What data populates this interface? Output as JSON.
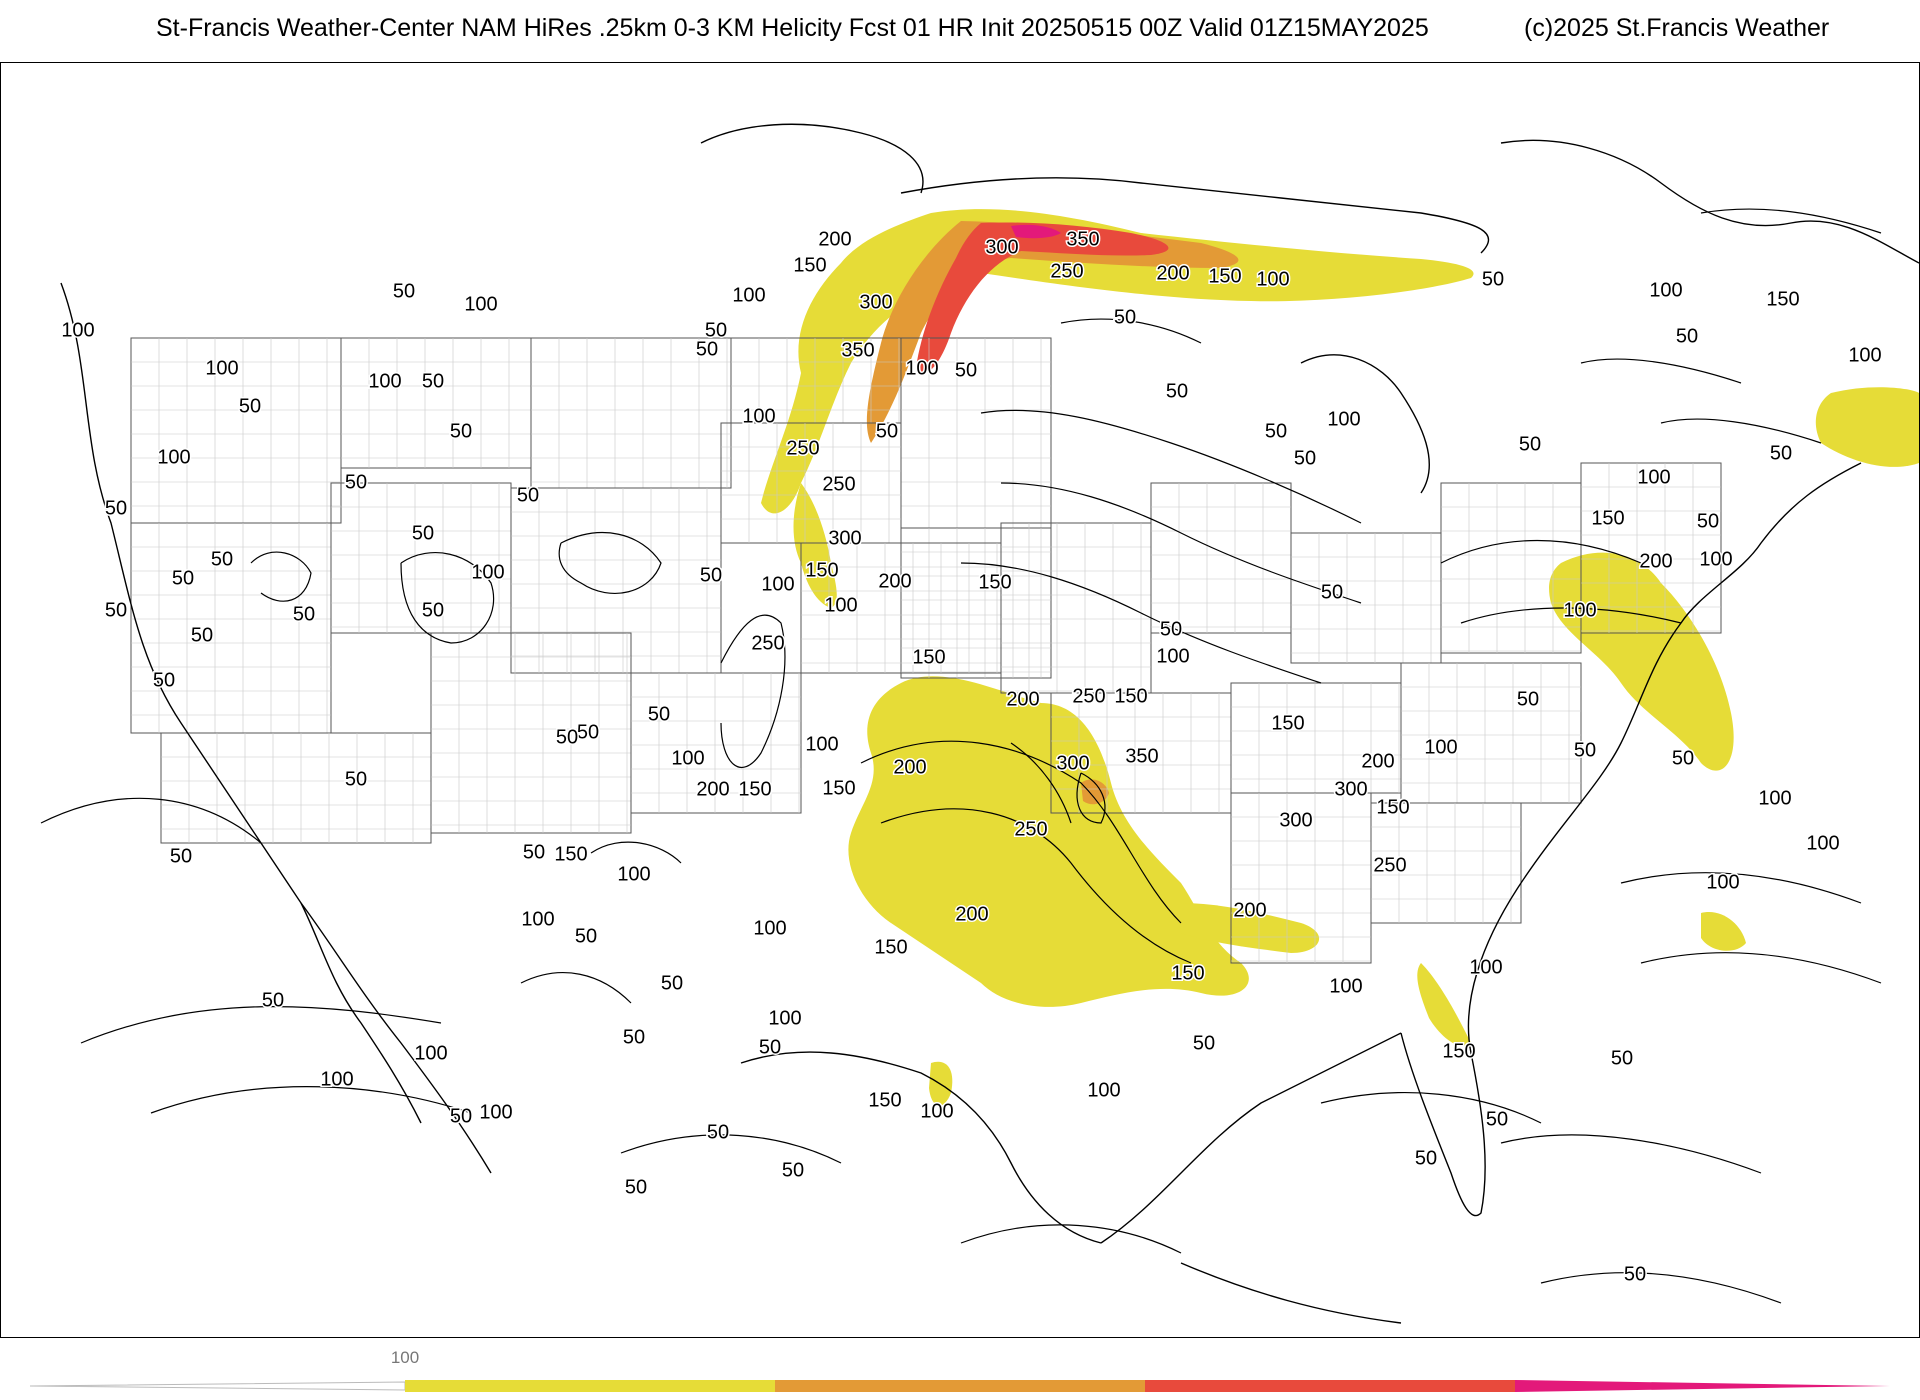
{
  "title": {
    "main": "St-Francis Weather-Center NAM HiRes .25km 0-3 KM Helicity Fcst 01 HR Init 20250515 00Z  Valid 01Z15MAY2025",
    "copyright": "(c)2025 St.Francis Weather"
  },
  "colors": {
    "fill_yellow": "#e6dc37",
    "fill_orange": "#e39a36",
    "fill_red": "#e84a3c",
    "fill_magenta": "#e3197a",
    "line": "#000000",
    "grid": "#9a9a9a"
  },
  "legend": {
    "tick_label": "100",
    "bins": [
      "#e6dc37",
      "#e39a36",
      "#e84a3c",
      "#e3197a"
    ]
  },
  "contour_labels": [
    {
      "t": "50",
      "lx": 0.21,
      "ly": 0.18
    },
    {
      "t": "100",
      "lx": 0.25,
      "ly": 0.19
    },
    {
      "t": "100",
      "lx": 0.04,
      "ly": 0.21
    },
    {
      "t": "100",
      "lx": 0.115,
      "ly": 0.24
    },
    {
      "t": "100",
      "lx": 0.2,
      "ly": 0.25
    },
    {
      "t": "50",
      "lx": 0.225,
      "ly": 0.25
    },
    {
      "t": "50",
      "lx": 0.13,
      "ly": 0.27
    },
    {
      "t": "50",
      "lx": 0.24,
      "ly": 0.29
    },
    {
      "t": "100",
      "lx": 0.09,
      "ly": 0.31
    },
    {
      "t": "50",
      "lx": 0.06,
      "ly": 0.35
    },
    {
      "t": "50",
      "lx": 0.185,
      "ly": 0.33
    },
    {
      "t": "50",
      "lx": 0.275,
      "ly": 0.34
    },
    {
      "t": "50",
      "lx": 0.22,
      "ly": 0.37
    },
    {
      "t": "50",
      "lx": 0.115,
      "ly": 0.39
    },
    {
      "t": "50",
      "lx": 0.095,
      "ly": 0.405
    },
    {
      "t": "100",
      "lx": 0.254,
      "ly": 0.4
    },
    {
      "t": "50",
      "lx": 0.06,
      "ly": 0.43
    },
    {
      "t": "50",
      "lx": 0.158,
      "ly": 0.433
    },
    {
      "t": "50",
      "lx": 0.225,
      "ly": 0.43
    },
    {
      "t": "50",
      "lx": 0.105,
      "ly": 0.45
    },
    {
      "t": "50",
      "lx": 0.085,
      "ly": 0.485
    },
    {
      "t": "50",
      "lx": 0.37,
      "ly": 0.403
    },
    {
      "t": "100",
      "lx": 0.405,
      "ly": 0.41
    },
    {
      "t": "100",
      "lx": 0.438,
      "ly": 0.426
    },
    {
      "t": "200",
      "lx": 0.466,
      "ly": 0.407
    },
    {
      "t": "150",
      "lx": 0.428,
      "ly": 0.399
    },
    {
      "t": "250",
      "lx": 0.4,
      "ly": 0.456
    },
    {
      "t": "50",
      "lx": 0.368,
      "ly": 0.225
    },
    {
      "t": "50",
      "lx": 0.373,
      "ly": 0.21
    },
    {
      "t": "100",
      "lx": 0.39,
      "ly": 0.183
    },
    {
      "t": "150",
      "lx": 0.422,
      "ly": 0.159
    },
    {
      "t": "200",
      "lx": 0.435,
      "ly": 0.139
    },
    {
      "t": "300",
      "lx": 0.456,
      "ly": 0.188
    },
    {
      "t": "350",
      "lx": 0.447,
      "ly": 0.226
    },
    {
      "t": "100",
      "lx": 0.395,
      "ly": 0.278
    },
    {
      "t": "250",
      "lx": 0.418,
      "ly": 0.303
    },
    {
      "t": "250",
      "lx": 0.437,
      "ly": 0.331
    },
    {
      "t": "300",
      "lx": 0.44,
      "ly": 0.374
    },
    {
      "t": "100",
      "lx": 0.48,
      "ly": 0.24
    },
    {
      "t": "50",
      "lx": 0.503,
      "ly": 0.242
    },
    {
      "t": "50",
      "lx": 0.462,
      "ly": 0.29
    },
    {
      "t": "300",
      "lx": 0.522,
      "ly": 0.145
    },
    {
      "t": "350",
      "lx": 0.564,
      "ly": 0.139
    },
    {
      "t": "250",
      "lx": 0.556,
      "ly": 0.164
    },
    {
      "t": "200",
      "lx": 0.611,
      "ly": 0.166
    },
    {
      "t": "150",
      "lx": 0.638,
      "ly": 0.168
    },
    {
      "t": "100",
      "lx": 0.663,
      "ly": 0.17
    },
    {
      "t": "50",
      "lx": 0.778,
      "ly": 0.17
    },
    {
      "t": "50",
      "lx": 0.586,
      "ly": 0.2
    },
    {
      "t": "50",
      "lx": 0.613,
      "ly": 0.258
    },
    {
      "t": "50",
      "lx": 0.665,
      "ly": 0.29
    },
    {
      "t": "50",
      "lx": 0.68,
      "ly": 0.311
    },
    {
      "t": "100",
      "lx": 0.7,
      "ly": 0.28
    },
    {
      "t": "100",
      "lx": 0.868,
      "ly": 0.179
    },
    {
      "t": "150",
      "lx": 0.929,
      "ly": 0.186
    },
    {
      "t": "50",
      "lx": 0.879,
      "ly": 0.215
    },
    {
      "t": "100",
      "lx": 0.972,
      "ly": 0.23
    },
    {
      "t": "50",
      "lx": 0.928,
      "ly": 0.307
    },
    {
      "t": "50",
      "lx": 0.797,
      "ly": 0.3
    },
    {
      "t": "100",
      "lx": 0.862,
      "ly": 0.326
    },
    {
      "t": "150",
      "lx": 0.838,
      "ly": 0.358
    },
    {
      "t": "50",
      "lx": 0.89,
      "ly": 0.36
    },
    {
      "t": "200",
      "lx": 0.863,
      "ly": 0.392
    },
    {
      "t": "100",
      "lx": 0.894,
      "ly": 0.39
    },
    {
      "t": "100",
      "lx": 0.823,
      "ly": 0.43
    },
    {
      "t": "50",
      "lx": 0.694,
      "ly": 0.416
    },
    {
      "t": "50",
      "lx": 0.61,
      "ly": 0.445
    },
    {
      "t": "100",
      "lx": 0.611,
      "ly": 0.466
    },
    {
      "t": "150",
      "lx": 0.518,
      "ly": 0.408
    },
    {
      "t": "150",
      "lx": 0.484,
      "ly": 0.467
    },
    {
      "t": "200",
      "lx": 0.533,
      "ly": 0.5
    },
    {
      "t": "250",
      "lx": 0.567,
      "ly": 0.498
    },
    {
      "t": "150",
      "lx": 0.589,
      "ly": 0.498
    },
    {
      "t": "150",
      "lx": 0.671,
      "ly": 0.519
    },
    {
      "t": "50",
      "lx": 0.796,
      "ly": 0.5
    },
    {
      "t": "350",
      "lx": 0.595,
      "ly": 0.545
    },
    {
      "t": "300",
      "lx": 0.559,
      "ly": 0.55
    },
    {
      "t": "200",
      "lx": 0.474,
      "ly": 0.553
    },
    {
      "t": "150",
      "lx": 0.437,
      "ly": 0.57
    },
    {
      "t": "100",
      "lx": 0.428,
      "ly": 0.535
    },
    {
      "t": "200",
      "lx": 0.718,
      "ly": 0.549
    },
    {
      "t": "100",
      "lx": 0.751,
      "ly": 0.538
    },
    {
      "t": "300",
      "lx": 0.704,
      "ly": 0.571
    },
    {
      "t": "300",
      "lx": 0.675,
      "ly": 0.595
    },
    {
      "t": "150",
      "lx": 0.726,
      "ly": 0.585
    },
    {
      "t": "50",
      "lx": 0.826,
      "ly": 0.54
    },
    {
      "t": "250",
      "lx": 0.724,
      "ly": 0.63
    },
    {
      "t": "250",
      "lx": 0.537,
      "ly": 0.602
    },
    {
      "t": "200",
      "lx": 0.506,
      "ly": 0.669
    },
    {
      "t": "150",
      "lx": 0.464,
      "ly": 0.695
    },
    {
      "t": "200",
      "lx": 0.651,
      "ly": 0.666
    },
    {
      "t": "150",
      "lx": 0.619,
      "ly": 0.715
    },
    {
      "t": "100",
      "lx": 0.701,
      "ly": 0.725
    },
    {
      "t": "50",
      "lx": 0.877,
      "ly": 0.546
    },
    {
      "t": "100",
      "lx": 0.925,
      "ly": 0.578
    },
    {
      "t": "100",
      "lx": 0.95,
      "ly": 0.613
    },
    {
      "t": "100",
      "lx": 0.898,
      "ly": 0.644
    },
    {
      "t": "100",
      "lx": 0.774,
      "ly": 0.71
    },
    {
      "t": "150",
      "lx": 0.76,
      "ly": 0.776
    },
    {
      "t": "50",
      "lx": 0.845,
      "ly": 0.782
    },
    {
      "t": "50",
      "lx": 0.78,
      "ly": 0.83
    },
    {
      "t": "50",
      "lx": 0.743,
      "ly": 0.86
    },
    {
      "t": "50",
      "lx": 0.852,
      "ly": 0.951
    },
    {
      "t": "50",
      "lx": 0.627,
      "ly": 0.77
    },
    {
      "t": "100",
      "lx": 0.575,
      "ly": 0.807
    },
    {
      "t": "150",
      "lx": 0.461,
      "ly": 0.815
    },
    {
      "t": "100",
      "lx": 0.488,
      "ly": 0.823
    },
    {
      "t": "50",
      "lx": 0.374,
      "ly": 0.84
    },
    {
      "t": "50",
      "lx": 0.413,
      "ly": 0.87
    },
    {
      "t": "50",
      "lx": 0.331,
      "ly": 0.883
    },
    {
      "t": "100",
      "lx": 0.409,
      "ly": 0.75
    },
    {
      "t": "100",
      "lx": 0.401,
      "ly": 0.68
    },
    {
      "t": "50",
      "lx": 0.35,
      "ly": 0.723
    },
    {
      "t": "50",
      "lx": 0.33,
      "ly": 0.765
    },
    {
      "t": "50",
      "lx": 0.401,
      "ly": 0.773
    },
    {
      "t": "100",
      "lx": 0.358,
      "ly": 0.546
    },
    {
      "t": "150",
      "lx": 0.393,
      "ly": 0.571
    },
    {
      "t": "200",
      "lx": 0.371,
      "ly": 0.571
    },
    {
      "t": "50",
      "lx": 0.343,
      "ly": 0.512
    },
    {
      "t": "50",
      "lx": 0.306,
      "ly": 0.526
    },
    {
      "t": "50",
      "lx": 0.295,
      "ly": 0.53
    },
    {
      "t": "150",
      "lx": 0.297,
      "ly": 0.622
    },
    {
      "t": "50",
      "lx": 0.278,
      "ly": 0.62
    },
    {
      "t": "100",
      "lx": 0.33,
      "ly": 0.637
    },
    {
      "t": "100",
      "lx": 0.28,
      "ly": 0.673
    },
    {
      "t": "50",
      "lx": 0.305,
      "ly": 0.686
    },
    {
      "t": "50",
      "lx": 0.185,
      "ly": 0.563
    },
    {
      "t": "50",
      "lx": 0.094,
      "ly": 0.623
    },
    {
      "t": "50",
      "lx": 0.142,
      "ly": 0.736
    },
    {
      "t": "100",
      "lx": 0.224,
      "ly": 0.778
    },
    {
      "t": "100",
      "lx": 0.175,
      "ly": 0.798
    },
    {
      "t": "50",
      "lx": 0.24,
      "ly": 0.827
    },
    {
      "t": "100",
      "lx": 0.258,
      "ly": 0.824
    }
  ]
}
